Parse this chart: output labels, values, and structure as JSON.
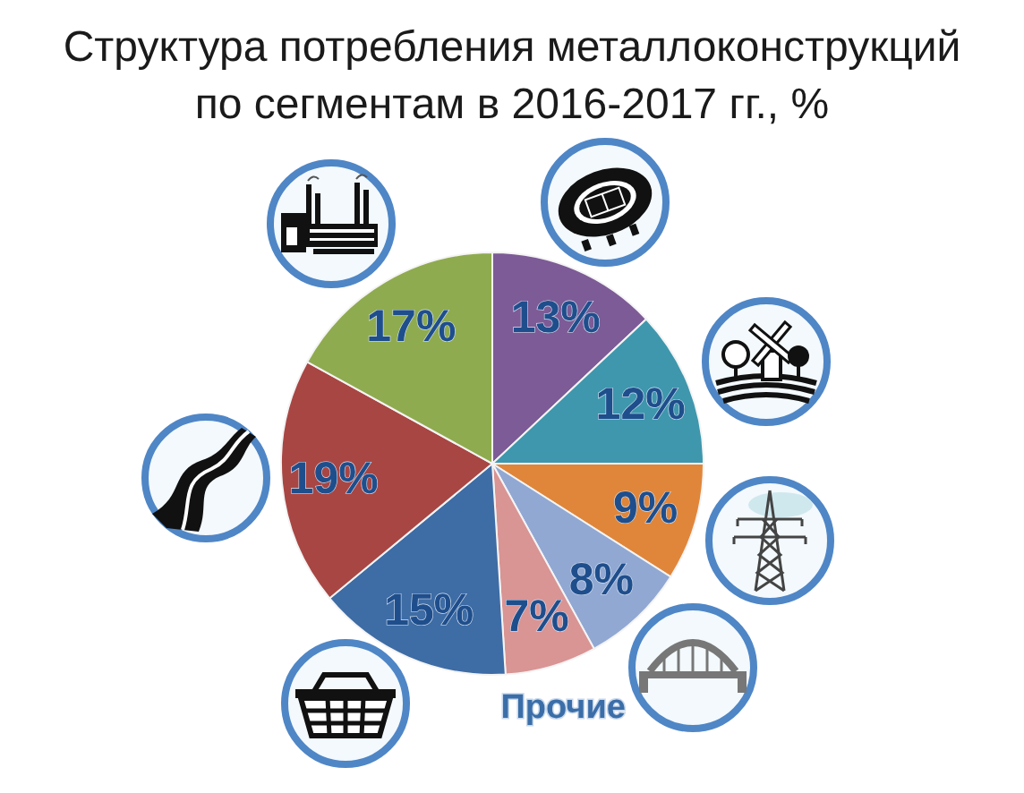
{
  "chart_data": {
    "type": "pie",
    "title": "Структура потребления металлоконструкций по сегментам в 2016-2017 гг., %",
    "categories": [
      null,
      null,
      null,
      null,
      "Прочие",
      null,
      null,
      null
    ],
    "values": [
      13,
      12,
      9,
      8,
      7,
      15,
      19,
      17
    ],
    "colors": [
      "#7d5b96",
      "#3e97ad",
      "#e0863a",
      "#91a8d3",
      "#d99494",
      "#3e6ca5",
      "#a84643",
      "#8fab4f"
    ],
    "value_labels": [
      "13%",
      "12%",
      "9%",
      "8%",
      "7%",
      "15%",
      "19%",
      "17%"
    ]
  }
}
